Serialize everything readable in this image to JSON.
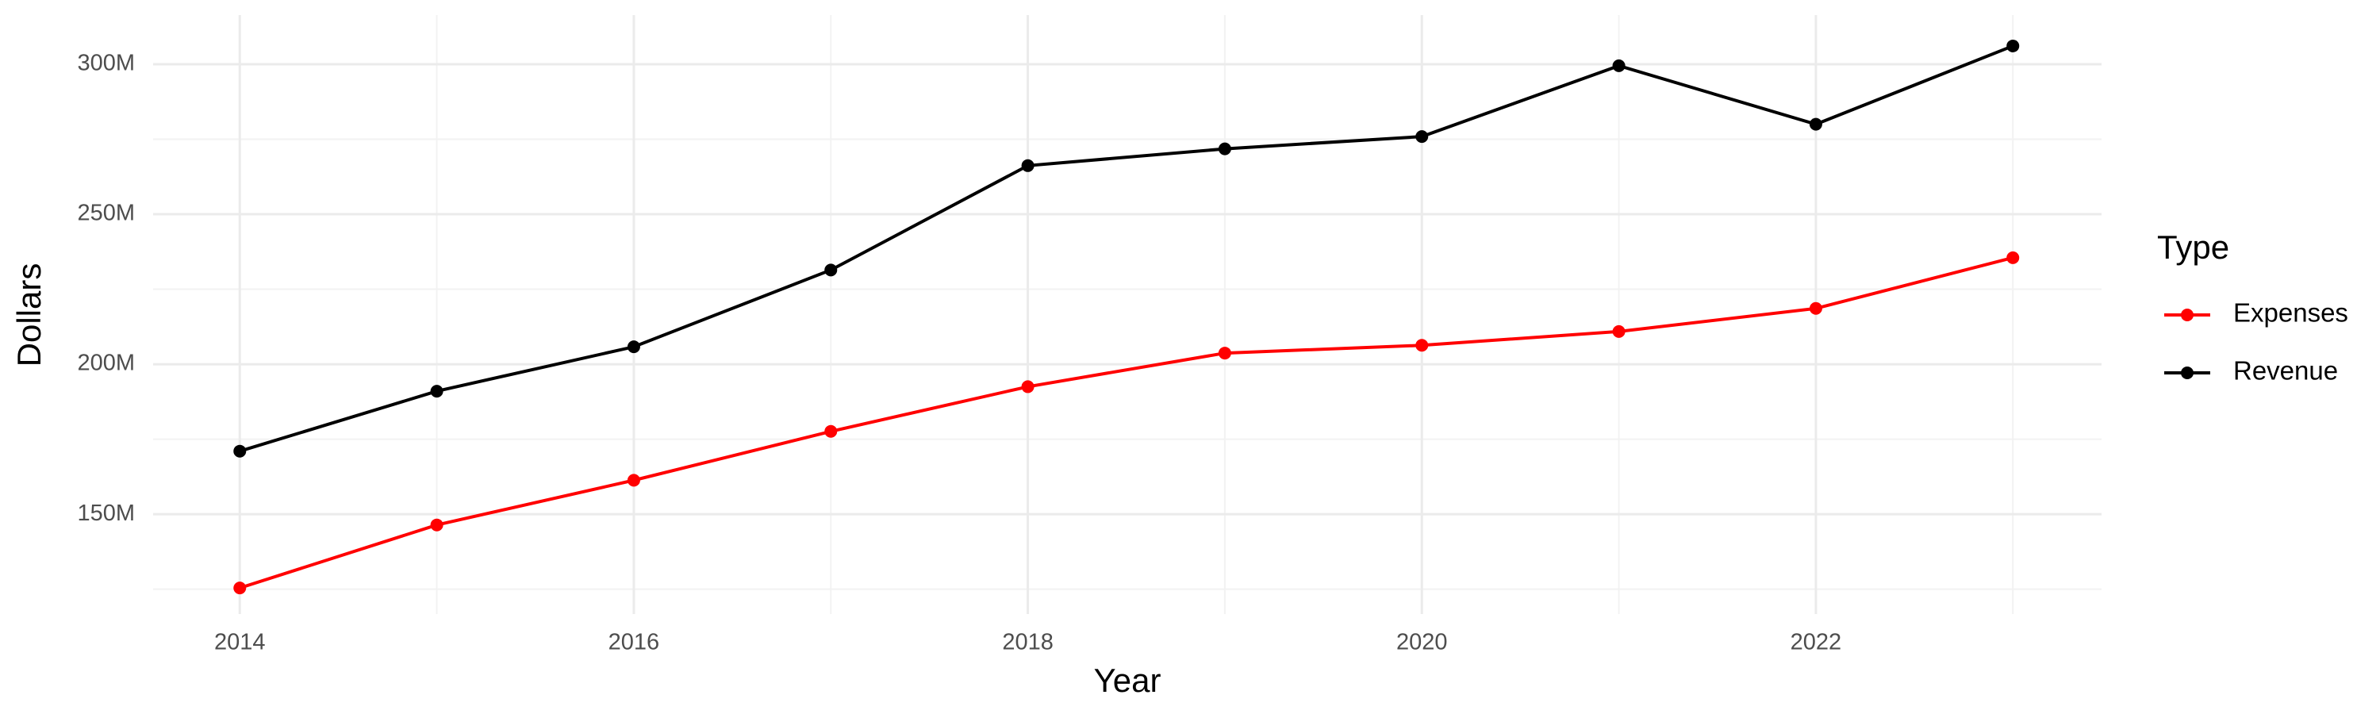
{
  "chart_data": {
    "type": "line",
    "x_label": "Year",
    "y_label": "Dollars",
    "legend_title": "Type",
    "legend_position": "right",
    "grid": true,
    "x": [
      2014,
      2015,
      2016,
      2017,
      2018,
      2019,
      2020,
      2021,
      2022,
      2023
    ],
    "series": [
      {
        "name": "Expenses",
        "color": "#ff0000",
        "values": [
          125400000,
          146400000,
          161300000,
          177600000,
          192500000,
          203700000,
          206300000,
          210900000,
          218600000,
          235500000
        ]
      },
      {
        "name": "Revenue",
        "color": "#000000",
        "values": [
          171000000,
          191000000,
          205800000,
          231400000,
          266200000,
          271800000,
          275900000,
          299500000,
          280000000,
          306100000
        ]
      }
    ],
    "xlim": [
      2013.56,
      2023.45
    ],
    "xticks": [
      2014,
      2016,
      2018,
      2020,
      2022
    ],
    "ylim": [
      116700000,
      316400000
    ],
    "yticks": [
      {
        "value": 150000000,
        "label": "150M"
      },
      {
        "value": 200000000,
        "label": "200M"
      },
      {
        "value": 250000000,
        "label": "250M"
      },
      {
        "value": 300000000,
        "label": "300M"
      }
    ]
  }
}
